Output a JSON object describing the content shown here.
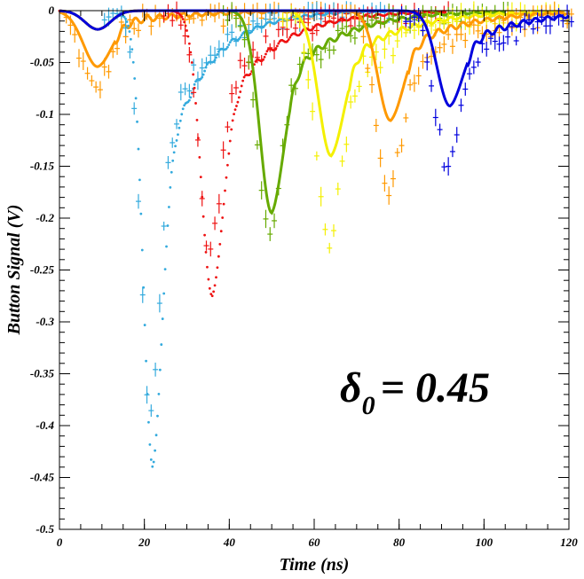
{
  "chart_data": {
    "type": "scatter",
    "title": "",
    "xlabel": "Time (ns)",
    "ylabel": "Button Signal (V)",
    "xlim": [
      0,
      120
    ],
    "ylim": [
      -0.5,
      0
    ],
    "x_ticks": [
      0,
      20,
      40,
      60,
      80,
      100,
      120
    ],
    "y_ticks": [
      0,
      -0.05,
      -0.1,
      -0.15,
      -0.2,
      -0.25,
      -0.3,
      -0.35,
      -0.4,
      -0.45,
      -0.5
    ],
    "x_tick_labels": [
      "0",
      "20",
      "40",
      "60",
      "80",
      "100",
      "120"
    ],
    "y_tick_labels": [
      "0",
      "-0.05",
      "-0.1",
      "-0.15",
      "-0.2",
      "-0.25",
      "-0.3",
      "-0.35",
      "-0.4",
      "-0.45",
      "-0.5"
    ],
    "grid": false,
    "annotation": {
      "symbol": "δ",
      "subscript": "0",
      "text": "= 0.45"
    },
    "series": [
      {
        "color": "#ff9900",
        "peak_time": 9,
        "min_signal": -0.036,
        "width": 3.5,
        "sim_style": "thick",
        "meas_scale": 1.4
      },
      {
        "color": "#33aadd",
        "peak_time": 22,
        "min_signal": -0.44,
        "width": 2.2,
        "sim_style": "dotted",
        "meas_scale": 0.9
      },
      {
        "color": "#ee1111",
        "peak_time": 36,
        "min_signal": -0.275,
        "width": 2.6,
        "sim_style": "dotted",
        "meas_scale": 0.85
      },
      {
        "color": "#66aa00",
        "peak_time": 50,
        "min_signal": -0.195,
        "width": 2.8,
        "sim_style": "thick",
        "meas_scale": 1.1
      },
      {
        "color": "#f4f000",
        "peak_time": 64,
        "min_signal": -0.14,
        "width": 3.0,
        "sim_style": "thick",
        "meas_scale": 1.6
      },
      {
        "color": "#ff9900",
        "peak_time": 78,
        "min_signal": -0.106,
        "width": 3.0,
        "sim_style": "thick",
        "meas_scale": 1.7
      },
      {
        "color": "#0000dd",
        "peak_time": 92,
        "min_signal": -0.092,
        "width": 3.0,
        "sim_style": "thick",
        "meas_scale": 1.6
      }
    ]
  }
}
